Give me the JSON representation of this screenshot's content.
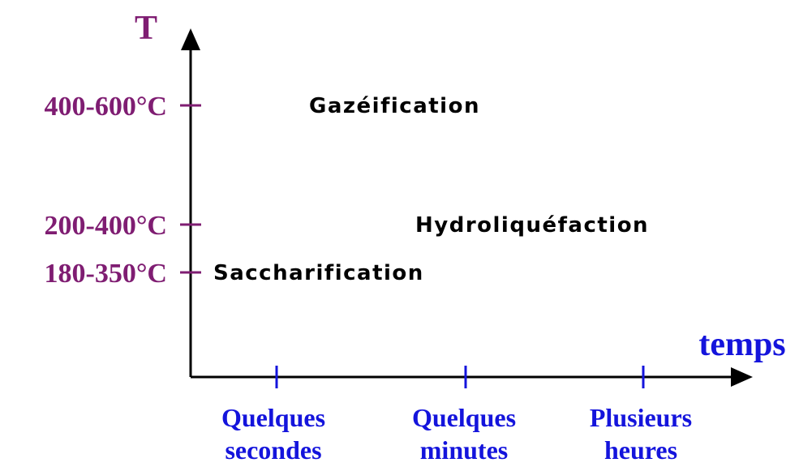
{
  "axes": {
    "y_label": "T",
    "x_label": "temps"
  },
  "y_ticks": [
    "400-600°C",
    "200-400°C",
    "180-350°C"
  ],
  "x_ticks": [
    [
      "Quelques",
      "secondes"
    ],
    [
      "Quelques",
      "minutes"
    ],
    [
      "Plusieurs",
      "heures"
    ]
  ],
  "processes": [
    "Gazéification",
    "Hydroliquéfaction",
    "Saccharification"
  ]
}
